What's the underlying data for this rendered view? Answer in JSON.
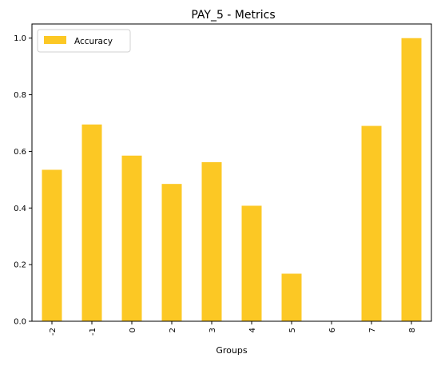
{
  "chart_data": {
    "type": "bar",
    "title": "PAY_5 - Metrics",
    "xlabel": "Groups",
    "ylabel": "",
    "categories": [
      "-2",
      "-1",
      "0",
      "2",
      "3",
      "4",
      "5",
      "6",
      "7",
      "8"
    ],
    "series": [
      {
        "name": "Accuracy",
        "values": [
          0.535,
          0.695,
          0.585,
          0.485,
          0.562,
          0.408,
          0.168,
          0.0,
          0.69,
          1.0
        ],
        "color": "#fcc824"
      }
    ],
    "ylim": [
      0,
      1.05
    ],
    "yticks": [
      0.0,
      0.2,
      0.4,
      0.6,
      0.8,
      1.0
    ],
    "ytick_labels": [
      "0.0",
      "0.2",
      "0.4",
      "0.6",
      "0.8",
      "1.0"
    ],
    "grid": false,
    "legend_position": "top-left"
  }
}
